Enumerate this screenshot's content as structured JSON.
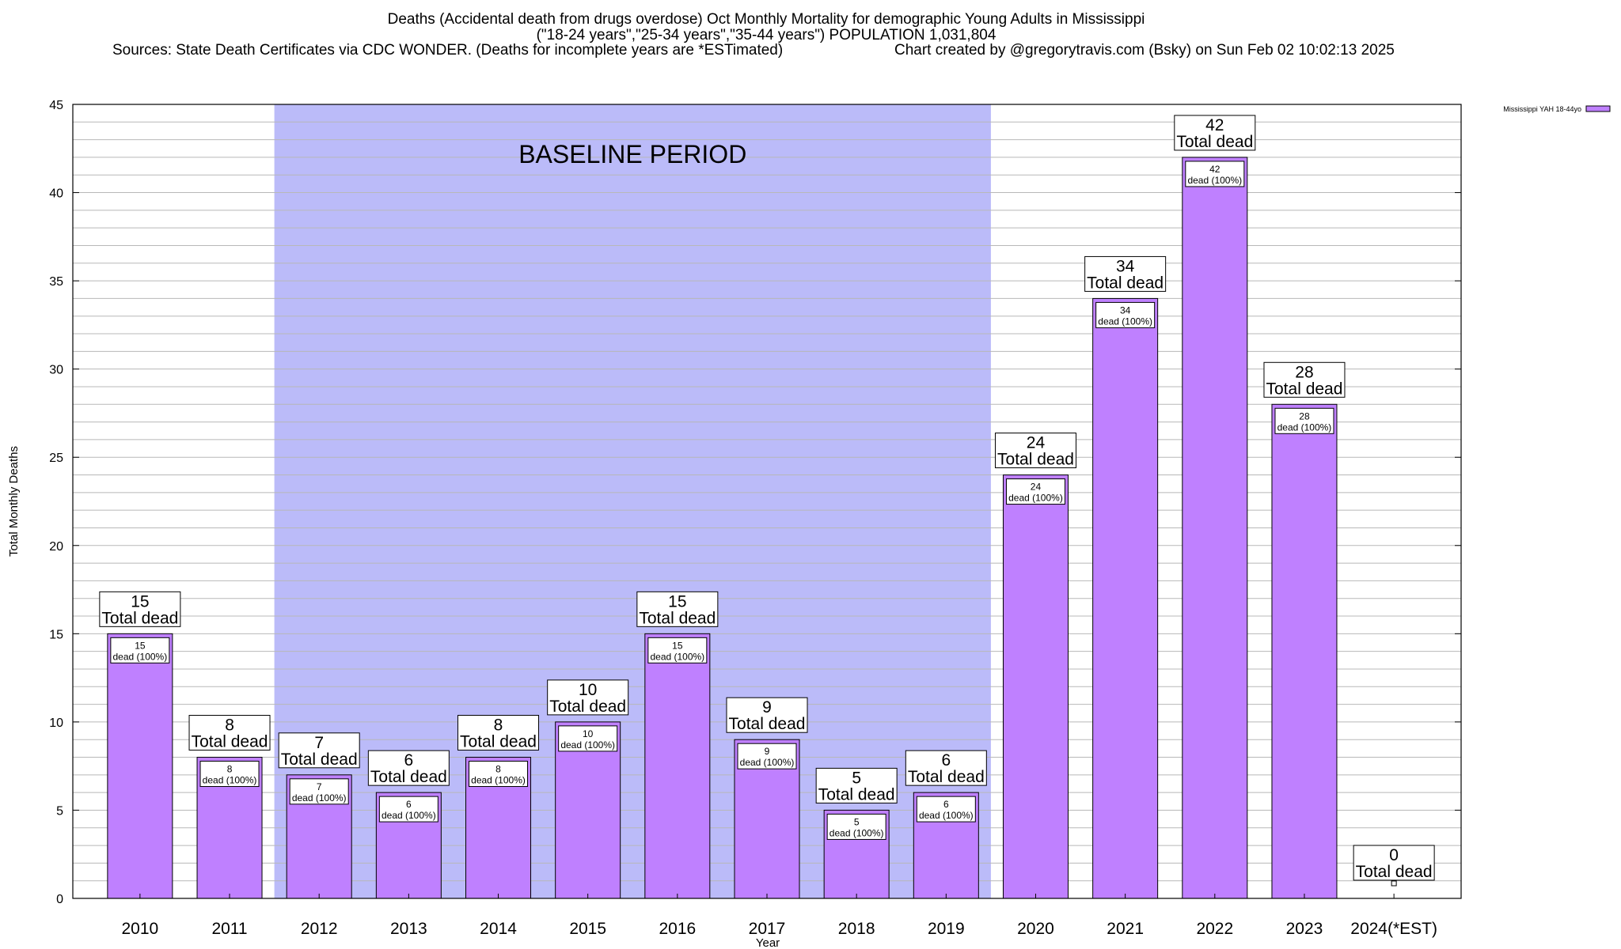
{
  "chart_data": {
    "type": "bar",
    "title": "Deaths (Accidental death from drugs overdose) Oct Monthly Mortality for demographic Young Adults in Mississippi",
    "subtitle": "(\"18-24 years\",\"25-34 years\",\"35-44 years\") POPULATION 1,031,804",
    "sources": "Sources: State Death Certificates via CDC WONDER. (Deaths for incomplete years are *ESTimated)",
    "credit": "Chart created by @gregorytravis.com (Bsky) on Sun Feb 02 10:02:13 2025",
    "xlabel": "Year",
    "ylabel": "Total Monthly Deaths",
    "ylim": [
      0,
      45
    ],
    "yticks": [
      0,
      5,
      10,
      15,
      20,
      25,
      30,
      35,
      40,
      45
    ],
    "grid": true,
    "legend_position": "top-right",
    "categories": [
      "2010",
      "2011",
      "2012",
      "2013",
      "2014",
      "2015",
      "2016",
      "2017",
      "2018",
      "2019",
      "2020",
      "2021",
      "2022",
      "2023",
      "2024(*EST)"
    ],
    "series": [
      {
        "name": "Mississippi YAH 18-44yo",
        "values": [
          15,
          8,
          7,
          6,
          8,
          10,
          15,
          9,
          5,
          6,
          24,
          34,
          42,
          28,
          0
        ],
        "color": "#bf80ff"
      }
    ],
    "top_label_suffix": "Total dead",
    "inner_label_suffix": "dead (100%)",
    "baseline_period": {
      "label": "BASELINE PERIOD",
      "from": "2012",
      "to": "2019",
      "color": "#bbbbf9"
    }
  }
}
